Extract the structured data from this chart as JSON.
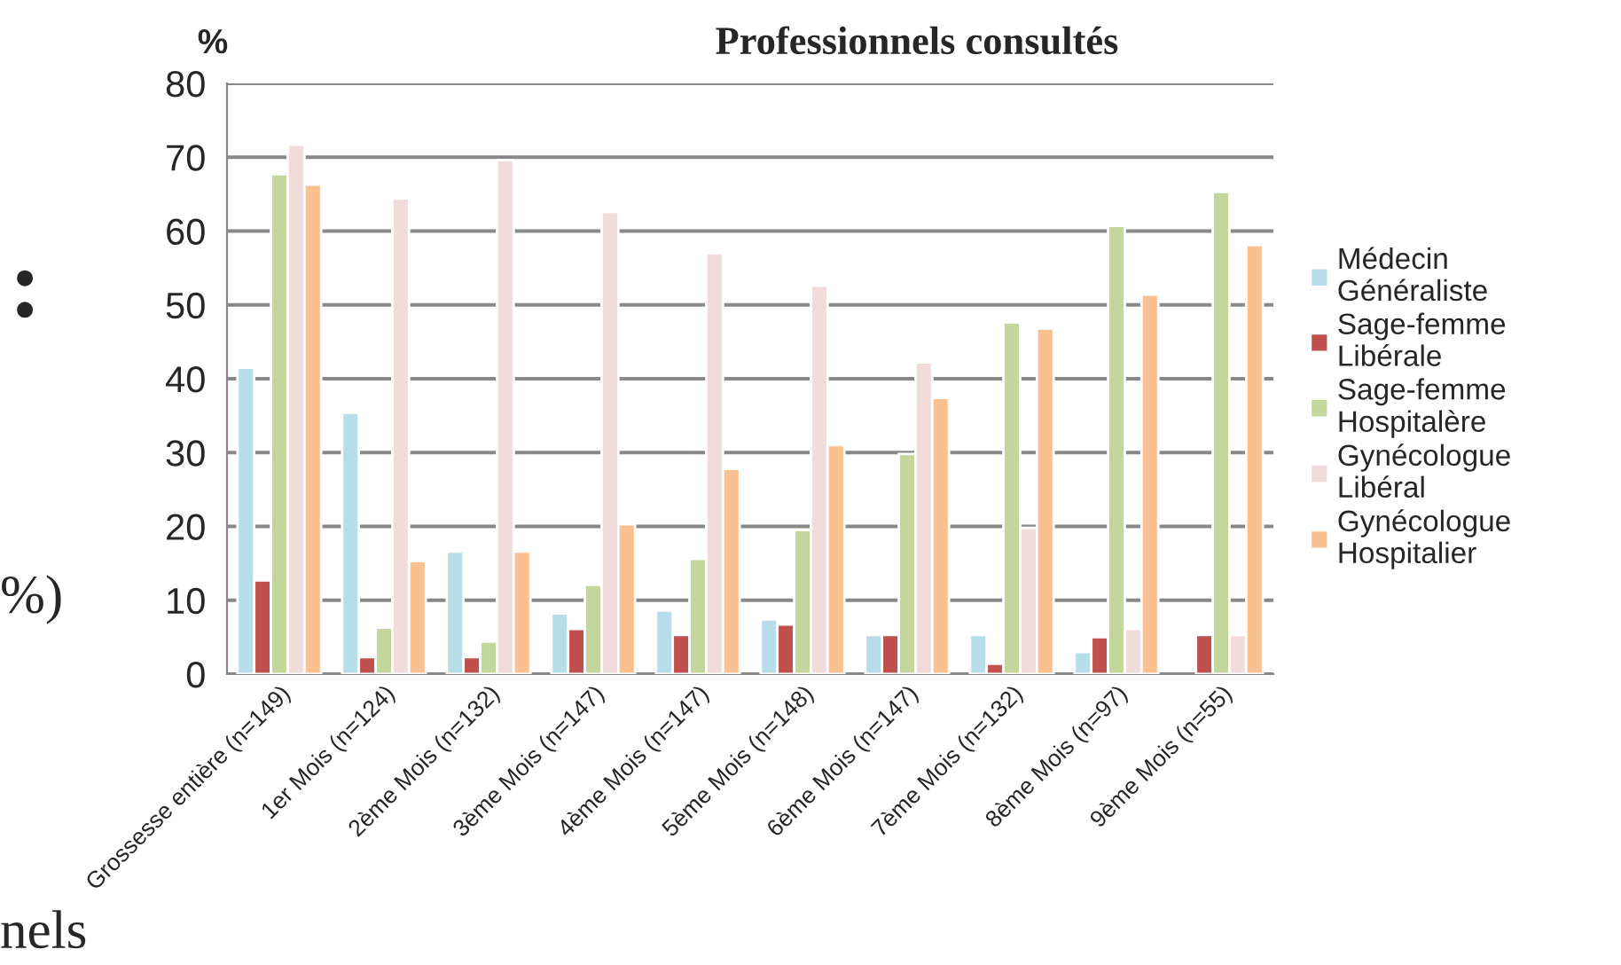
{
  "chart_data": {
    "type": "bar",
    "title": "Professionnels consultés",
    "ylabel": "%",
    "categories": [
      "Grossesse entière (n=149)",
      "1er Mois (n=124)",
      "2ème Mois (n=132)",
      "3ème Mois (n=147)",
      "4ème Mois (n=147)",
      "5ème Mois (n=148)",
      "6ème Mois (n=147)",
      "7ème Mois (n=132)",
      "8ème Mois (n=97)",
      "9ème Mois (n=55)"
    ],
    "series": [
      {
        "name": "Médecin\nGénéraliste",
        "color": "#b7dde8",
        "values": [
          41.5,
          35.4,
          16.6,
          8.2,
          8.6,
          7.4,
          5.3,
          5.3,
          3.0,
          null
        ]
      },
      {
        "name": "Sage-femme\nLibérale",
        "color": "#c0504d",
        "values": [
          12.7,
          2.3,
          2.3,
          6.1,
          5.3,
          6.7,
          5.3,
          1.4,
          5.0,
          5.3
        ]
      },
      {
        "name": "Sage-femme\nHospitalère",
        "color": "#c3d69b",
        "values": [
          67.7,
          6.3,
          4.4,
          12.1,
          15.6,
          19.5,
          29.8,
          47.6,
          60.7,
          65.3
        ]
      },
      {
        "name": "Gynécologue\nLibéral",
        "color": "#f2dcdb",
        "values": [
          71.7,
          64.4,
          69.6,
          62.6,
          57.0,
          52.6,
          42.2,
          19.8,
          6.1,
          5.3
        ]
      },
      {
        "name": "Gynécologue\nHospitalier",
        "color": "#fac090",
        "values": [
          66.3,
          15.3,
          16.6,
          20.3,
          27.8,
          31.0,
          37.4,
          46.8,
          51.4,
          58.1
        ]
      }
    ],
    "ylim": [
      0,
      80
    ],
    "yticks": [
      0,
      10,
      20,
      30,
      40,
      50,
      60,
      70,
      80
    ],
    "grid": "y",
    "legend": "right",
    "annotations": [
      ":",
      "%)",
      "nels"
    ]
  }
}
